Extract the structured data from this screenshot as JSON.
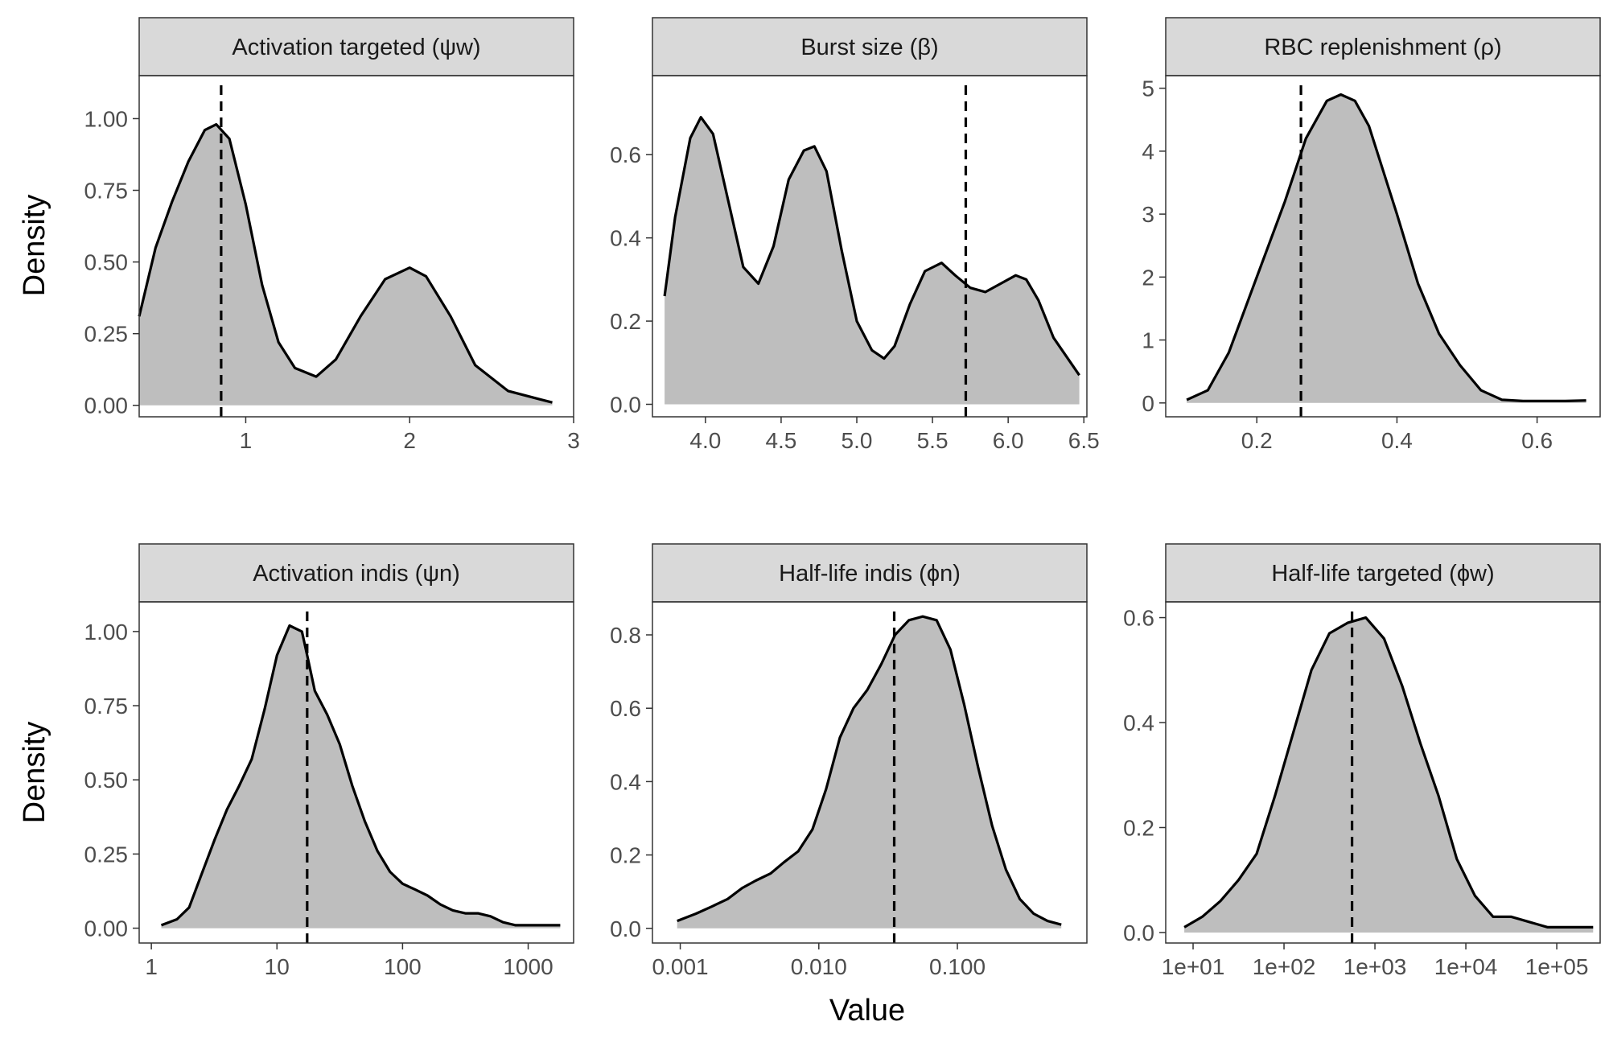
{
  "figure": {
    "ylabel": "Density",
    "xlabel": "Value"
  },
  "chart_data": [
    {
      "type": "area",
      "title": "Activation targeted (ψw)",
      "xscale": "linear",
      "xlim": [
        0.35,
        3.0
      ],
      "ylim": [
        -0.04,
        1.15
      ],
      "xticks": [
        1,
        2,
        3
      ],
      "xtick_labels": [
        "1",
        "2",
        "3"
      ],
      "yticks": [
        0,
        0.25,
        0.5,
        0.75,
        1.0
      ],
      "ytick_labels": [
        "0.00",
        "0.25",
        "0.50",
        "0.75",
        "1.00"
      ],
      "vline": 0.85,
      "x": [
        0.35,
        0.45,
        0.55,
        0.65,
        0.75,
        0.82,
        0.9,
        1.0,
        1.1,
        1.2,
        1.3,
        1.43,
        1.55,
        1.7,
        1.85,
        2.0,
        2.1,
        2.25,
        2.4,
        2.6,
        2.8,
        2.87
      ],
      "y": [
        0.31,
        0.55,
        0.71,
        0.85,
        0.96,
        0.98,
        0.93,
        0.7,
        0.42,
        0.22,
        0.13,
        0.1,
        0.16,
        0.31,
        0.44,
        0.48,
        0.45,
        0.31,
        0.14,
        0.05,
        0.02,
        0.01
      ]
    },
    {
      "type": "area",
      "title": "Burst size (β)",
      "xscale": "linear",
      "xlim": [
        3.65,
        6.52
      ],
      "ylim": [
        -0.03,
        0.79
      ],
      "xticks": [
        4.0,
        4.5,
        5.0,
        5.5,
        6.0,
        6.5
      ],
      "xtick_labels": [
        "4.0",
        "4.5",
        "5.0",
        "5.5",
        "6.0",
        "6.5"
      ],
      "yticks": [
        0,
        0.2,
        0.4,
        0.6
      ],
      "ytick_labels": [
        "0.0",
        "0.2",
        "0.4",
        "0.6"
      ],
      "vline": 5.72,
      "x": [
        3.73,
        3.8,
        3.9,
        3.97,
        4.05,
        4.15,
        4.25,
        4.35,
        4.45,
        4.55,
        4.65,
        4.72,
        4.8,
        4.9,
        5.0,
        5.1,
        5.18,
        5.25,
        5.35,
        5.45,
        5.56,
        5.65,
        5.75,
        5.85,
        5.95,
        6.05,
        6.12,
        6.2,
        6.3,
        6.47
      ],
      "y": [
        0.26,
        0.45,
        0.64,
        0.69,
        0.65,
        0.49,
        0.33,
        0.29,
        0.38,
        0.54,
        0.61,
        0.62,
        0.56,
        0.37,
        0.2,
        0.13,
        0.11,
        0.14,
        0.24,
        0.32,
        0.34,
        0.31,
        0.28,
        0.27,
        0.29,
        0.31,
        0.3,
        0.25,
        0.16,
        0.07
      ]
    },
    {
      "type": "area",
      "title": "RBC replenishment (ρ)",
      "xscale": "linear",
      "xlim": [
        0.07,
        0.69
      ],
      "ylim": [
        -0.22,
        5.2
      ],
      "xticks": [
        0.2,
        0.4,
        0.6
      ],
      "xtick_labels": [
        "0.2",
        "0.4",
        "0.6"
      ],
      "yticks": [
        0,
        1,
        2,
        3,
        4,
        5
      ],
      "ytick_labels": [
        "0",
        "1",
        "2",
        "3",
        "4",
        "5"
      ],
      "vline": 0.263,
      "x": [
        0.1,
        0.13,
        0.16,
        0.2,
        0.24,
        0.27,
        0.3,
        0.32,
        0.34,
        0.36,
        0.38,
        0.4,
        0.43,
        0.46,
        0.49,
        0.52,
        0.55,
        0.58,
        0.61,
        0.64,
        0.67
      ],
      "y": [
        0.05,
        0.2,
        0.8,
        2.0,
        3.2,
        4.2,
        4.8,
        4.9,
        4.8,
        4.4,
        3.7,
        3.0,
        1.9,
        1.1,
        0.6,
        0.2,
        0.05,
        0.03,
        0.03,
        0.03,
        0.04
      ]
    },
    {
      "type": "area",
      "title": "Activation indis (ψn)",
      "xscale": "log10",
      "xlim": [
        0.8,
        2300
      ],
      "ylim": [
        -0.05,
        1.1
      ],
      "xticks": [
        1,
        10,
        100,
        1000
      ],
      "xtick_labels": [
        "1",
        "10",
        "100",
        "1000"
      ],
      "yticks": [
        0,
        0.25,
        0.5,
        0.75,
        1.0
      ],
      "ytick_labels": [
        "0.00",
        "0.25",
        "0.50",
        "0.75",
        "1.00"
      ],
      "vline": 17.4,
      "x": [
        1.2,
        1.6,
        2.0,
        2.5,
        3.2,
        4.0,
        5.0,
        6.3,
        8.0,
        10.0,
        12.6,
        15.8,
        17.8,
        20.0,
        25.1,
        31.6,
        39.8,
        50.1,
        63.1,
        79.4,
        100,
        126,
        158,
        200,
        251,
        316,
        398,
        501,
        631,
        794,
        1000,
        1259,
        1585,
        1800
      ],
      "y": [
        0.01,
        0.03,
        0.07,
        0.18,
        0.3,
        0.4,
        0.48,
        0.57,
        0.74,
        0.92,
        1.02,
        1.0,
        0.9,
        0.8,
        0.72,
        0.62,
        0.48,
        0.36,
        0.26,
        0.19,
        0.15,
        0.13,
        0.11,
        0.08,
        0.06,
        0.05,
        0.05,
        0.04,
        0.02,
        0.01,
        0.01,
        0.01,
        0.01,
        0.01
      ]
    },
    {
      "type": "area",
      "title": "Half-life indis (ϕn)",
      "xscale": "log10",
      "xlim": [
        0.00063,
        0.86
      ],
      "ylim": [
        -0.04,
        0.89
      ],
      "xticks": [
        0.001,
        0.01,
        0.1
      ],
      "xtick_labels": [
        "0.001",
        "0.010",
        "0.100"
      ],
      "yticks": [
        0,
        0.2,
        0.4,
        0.6,
        0.8
      ],
      "ytick_labels": [
        "0.0",
        "0.2",
        "0.4",
        "0.6",
        "0.8"
      ],
      "vline": 0.035,
      "x": [
        0.00095,
        0.0013,
        0.0017,
        0.0022,
        0.0028,
        0.0035,
        0.0045,
        0.0056,
        0.0071,
        0.009,
        0.0113,
        0.0142,
        0.0178,
        0.0224,
        0.0282,
        0.0355,
        0.0447,
        0.0562,
        0.0708,
        0.0891,
        0.112,
        0.141,
        0.178,
        0.224,
        0.282,
        0.355,
        0.447,
        0.562
      ],
      "y": [
        0.02,
        0.04,
        0.06,
        0.08,
        0.11,
        0.13,
        0.15,
        0.18,
        0.21,
        0.27,
        0.38,
        0.52,
        0.6,
        0.65,
        0.72,
        0.8,
        0.84,
        0.85,
        0.84,
        0.76,
        0.61,
        0.44,
        0.28,
        0.16,
        0.08,
        0.04,
        0.02,
        0.01
      ]
    },
    {
      "type": "area",
      "title": "Half-life targeted (ϕw)",
      "xscale": "log10",
      "xlim": [
        5,
        300000
      ],
      "ylim": [
        -0.02,
        0.63
      ],
      "xticks": [
        10,
        100,
        1000,
        10000,
        100000
      ],
      "xtick_labels": [
        "1e+01",
        "1e+02",
        "1e+03",
        "1e+04",
        "1e+05"
      ],
      "yticks": [
        0,
        0.2,
        0.4,
        0.6
      ],
      "ytick_labels": [
        "0.0",
        "0.2",
        "0.4",
        "0.6"
      ],
      "vline": 560,
      "x": [
        8,
        12.6,
        20,
        31.6,
        50,
        79.4,
        126,
        200,
        316,
        501,
        794,
        1259,
        1995,
        3162,
        5012,
        7943,
        12589,
        19953,
        31623,
        50119,
        79433,
        125893,
        199526,
        251189
      ],
      "y": [
        0.01,
        0.03,
        0.06,
        0.1,
        0.15,
        0.26,
        0.38,
        0.5,
        0.57,
        0.59,
        0.6,
        0.56,
        0.47,
        0.36,
        0.26,
        0.14,
        0.07,
        0.03,
        0.03,
        0.02,
        0.01,
        0.01,
        0.01,
        0.01
      ]
    }
  ]
}
